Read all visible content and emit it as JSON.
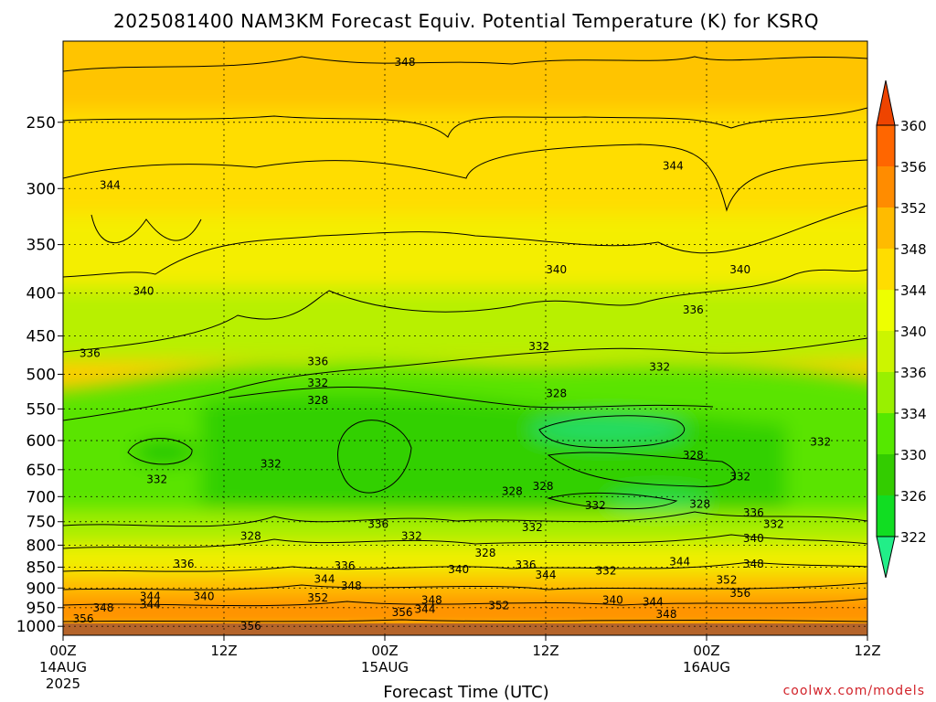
{
  "chart_data": {
    "type": "heatmap",
    "title": "2025081400 NAM3KM Forecast Equiv. Potential Temperature (K) for KSRQ",
    "xlabel": "Forecast Time (UTC)",
    "ylabel": "",
    "x_ticks": [
      {
        "hour": 0,
        "label": "00Z",
        "sub": [
          "14AUG",
          "2025"
        ]
      },
      {
        "hour": 12,
        "label": "12Z",
        "sub": []
      },
      {
        "hour": 24,
        "label": "00Z",
        "sub": [
          "15AUG"
        ]
      },
      {
        "hour": 36,
        "label": "12Z",
        "sub": []
      },
      {
        "hour": 48,
        "label": "00Z",
        "sub": [
          "16AUG"
        ]
      },
      {
        "hour": 60,
        "label": "12Z",
        "sub": []
      }
    ],
    "xlim": [
      0,
      60
    ],
    "y_ticks": [
      250,
      300,
      350,
      400,
      450,
      500,
      550,
      600,
      650,
      700,
      750,
      800,
      850,
      900,
      950,
      1000
    ],
    "ylim": [
      1025,
      200
    ],
    "y_scale": "log (pressure, hPa)",
    "grid": true,
    "colorbar": {
      "levels": [
        322,
        326,
        330,
        334,
        336,
        340,
        344,
        348,
        352,
        356,
        360
      ],
      "tick_labels": [
        "322",
        "326",
        "330",
        "334",
        "336",
        "340",
        "344",
        "348",
        "352",
        "356",
        "360"
      ],
      "colors": [
        "#22ee88",
        "#11dd22",
        "#33cc00",
        "#55e800",
        "#99f000",
        "#ccf500",
        "#eeff00",
        "#ffdd00",
        "#ffbb00",
        "#ff8c00",
        "#ff6600",
        "#ee4400"
      ],
      "placement": "right"
    },
    "contour_labels": [
      {
        "t": 25.5,
        "p": 212,
        "v": "348"
      },
      {
        "t": 3.5,
        "p": 297,
        "v": "344"
      },
      {
        "t": 45.5,
        "p": 282,
        "v": "344"
      },
      {
        "t": 36.8,
        "p": 375,
        "v": "340"
      },
      {
        "t": 50.5,
        "p": 375,
        "v": "340"
      },
      {
        "t": 6,
        "p": 398,
        "v": "340"
      },
      {
        "t": 47,
        "p": 419,
        "v": "336"
      },
      {
        "t": 2,
        "p": 472,
        "v": "336"
      },
      {
        "t": 19,
        "p": 483,
        "v": "336"
      },
      {
        "t": 19,
        "p": 512,
        "v": "332"
      },
      {
        "t": 35.5,
        "p": 463,
        "v": "332"
      },
      {
        "t": 44.5,
        "p": 490,
        "v": "332"
      },
      {
        "t": 19,
        "p": 537,
        "v": "328"
      },
      {
        "t": 36.8,
        "p": 527,
        "v": "328"
      },
      {
        "t": 56.5,
        "p": 602,
        "v": "332"
      },
      {
        "t": 15.5,
        "p": 640,
        "v": "332"
      },
      {
        "t": 7,
        "p": 668,
        "v": "332"
      },
      {
        "t": 47,
        "p": 625,
        "v": "328"
      },
      {
        "t": 50.5,
        "p": 663,
        "v": "332"
      },
      {
        "t": 33.5,
        "p": 690,
        "v": "328"
      },
      {
        "t": 35.8,
        "p": 680,
        "v": "328"
      },
      {
        "t": 39.7,
        "p": 717,
        "v": "332"
      },
      {
        "t": 47.5,
        "p": 715,
        "v": "328"
      },
      {
        "t": 51.5,
        "p": 732,
        "v": "336"
      },
      {
        "t": 53,
        "p": 755,
        "v": "332"
      },
      {
        "t": 51.5,
        "p": 785,
        "v": "340"
      },
      {
        "t": 23.5,
        "p": 755,
        "v": "336"
      },
      {
        "t": 35,
        "p": 762,
        "v": "332"
      },
      {
        "t": 26,
        "p": 780,
        "v": "332"
      },
      {
        "t": 14,
        "p": 780,
        "v": "328"
      },
      {
        "t": 31.5,
        "p": 817,
        "v": "328"
      },
      {
        "t": 9,
        "p": 843,
        "v": "336"
      },
      {
        "t": 51.5,
        "p": 843,
        "v": "348"
      },
      {
        "t": 46,
        "p": 837,
        "v": "344"
      },
      {
        "t": 34.5,
        "p": 845,
        "v": "336"
      },
      {
        "t": 21,
        "p": 847,
        "v": "336"
      },
      {
        "t": 29.5,
        "p": 855,
        "v": "340"
      },
      {
        "t": 40.5,
        "p": 858,
        "v": "332"
      },
      {
        "t": 36,
        "p": 868,
        "v": "344"
      },
      {
        "t": 19.5,
        "p": 878,
        "v": "344"
      },
      {
        "t": 21.5,
        "p": 895,
        "v": "348"
      },
      {
        "t": 49.5,
        "p": 880,
        "v": "352"
      },
      {
        "t": 6.5,
        "p": 921,
        "v": "344"
      },
      {
        "t": 10.5,
        "p": 921,
        "v": "340"
      },
      {
        "t": 19,
        "p": 925,
        "v": "352"
      },
      {
        "t": 27.5,
        "p": 930,
        "v": "348"
      },
      {
        "t": 41,
        "p": 930,
        "v": "340"
      },
      {
        "t": 44,
        "p": 935,
        "v": "344"
      },
      {
        "t": 50.5,
        "p": 913,
        "v": "356"
      },
      {
        "t": 6.5,
        "p": 942,
        "v": "344"
      },
      {
        "t": 3,
        "p": 951,
        "v": "348"
      },
      {
        "t": 32.5,
        "p": 945,
        "v": "352"
      },
      {
        "t": 27,
        "p": 954,
        "v": "344"
      },
      {
        "t": 25.3,
        "p": 962,
        "v": "356"
      },
      {
        "t": 45,
        "p": 968,
        "v": "348"
      },
      {
        "t": 1.5,
        "p": 980,
        "v": "356"
      },
      {
        "t": 14,
        "p": 1000,
        "v": "356"
      }
    ],
    "credit": "coolwx.com/models"
  }
}
